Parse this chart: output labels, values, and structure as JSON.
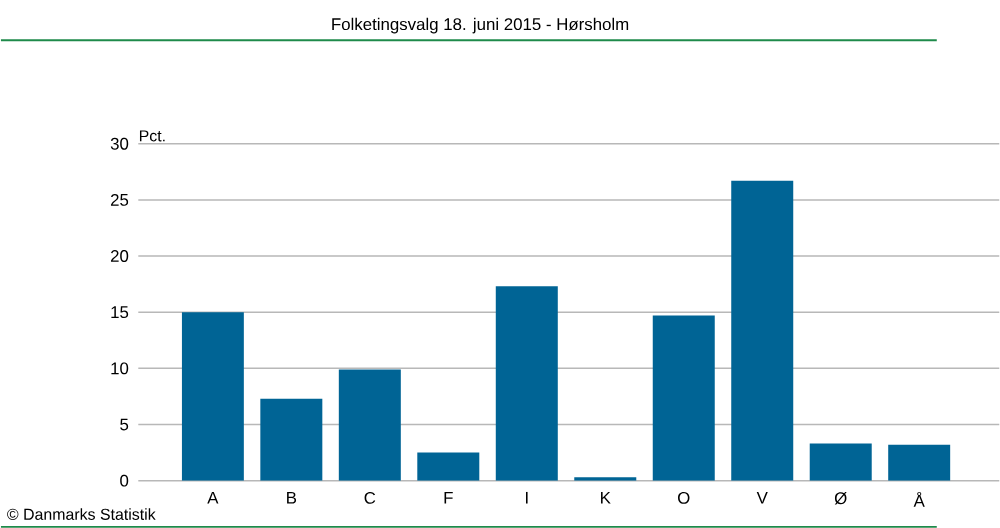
{
  "chart_data": {
    "type": "bar",
    "title": "Folketingsvalg 18. juni 2015 - Hørsholm",
    "ylabel": "Pct.",
    "categories": [
      "A",
      "B",
      "C",
      "F",
      "I",
      "K",
      "O",
      "V",
      "Ø",
      "Å"
    ],
    "values": [
      15.0,
      7.3,
      9.9,
      2.5,
      17.3,
      0.3,
      14.7,
      26.7,
      3.3,
      3.2
    ],
    "color": "#006495",
    "ylim": [
      0,
      30
    ],
    "yticks": [
      0,
      5,
      10,
      15,
      20,
      25,
      30
    ],
    "grid": "y",
    "annotations": [
      "© Danmarks Statistik"
    ]
  }
}
